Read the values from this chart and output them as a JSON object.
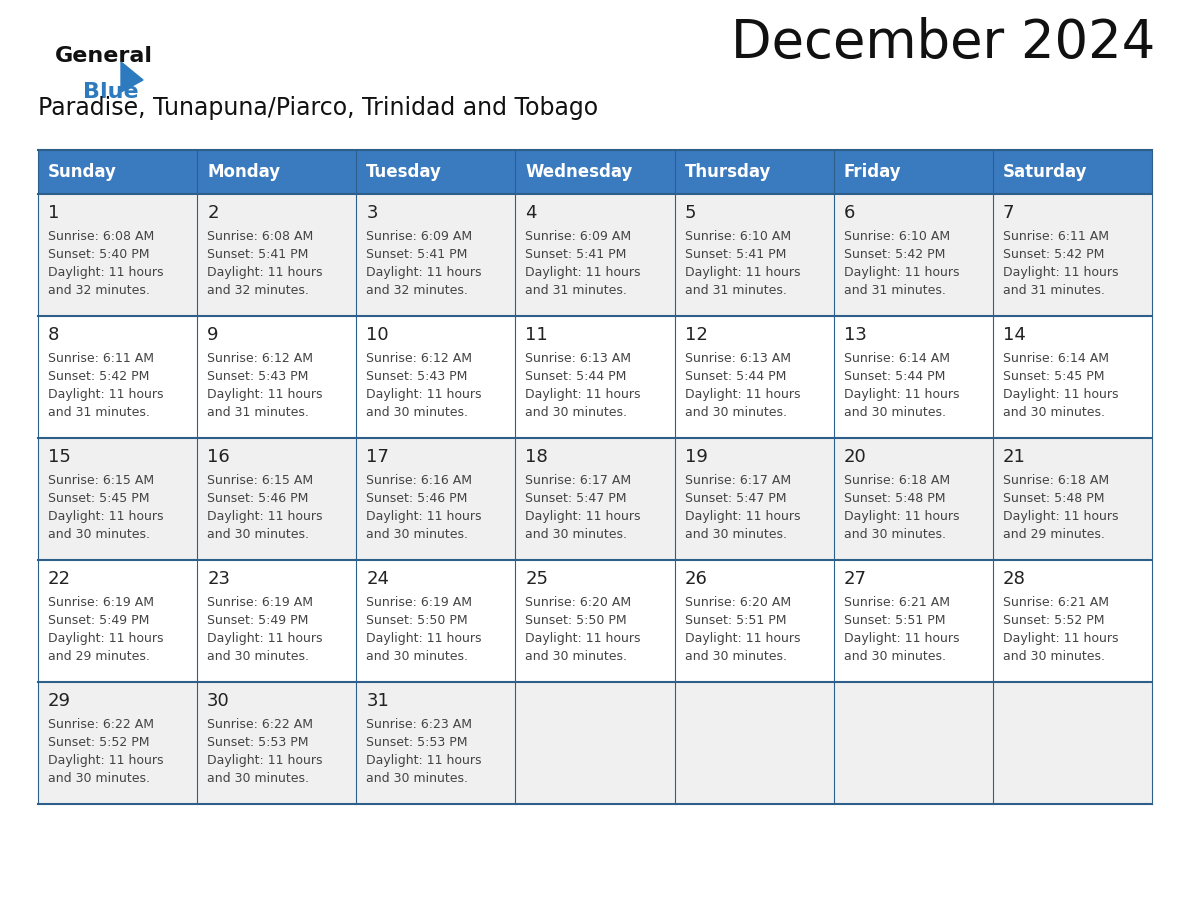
{
  "title": "December 2024",
  "subtitle": "Paradise, Tunapuna/Piarco, Trinidad and Tobago",
  "days_of_week": [
    "Sunday",
    "Monday",
    "Tuesday",
    "Wednesday",
    "Thursday",
    "Friday",
    "Saturday"
  ],
  "header_bg": "#3a7abf",
  "header_text": "#ffffff",
  "row_bg_odd": "#f0f0f0",
  "row_bg_even": "#ffffff",
  "grid_line_color": "#2e5f8a",
  "text_color": "#444444",
  "date_color": "#222222",
  "logo_general_color": "#111111",
  "logo_blue_color": "#2e7abf",
  "title_color": "#111111",
  "subtitle_color": "#111111",
  "calendar_data": [
    [
      {
        "day": 1,
        "sunrise": "6:08 AM",
        "sunset": "5:40 PM",
        "daylight": "11 hours and 32 minutes."
      },
      {
        "day": 2,
        "sunrise": "6:08 AM",
        "sunset": "5:41 PM",
        "daylight": "11 hours and 32 minutes."
      },
      {
        "day": 3,
        "sunrise": "6:09 AM",
        "sunset": "5:41 PM",
        "daylight": "11 hours and 32 minutes."
      },
      {
        "day": 4,
        "sunrise": "6:09 AM",
        "sunset": "5:41 PM",
        "daylight": "11 hours and 31 minutes."
      },
      {
        "day": 5,
        "sunrise": "6:10 AM",
        "sunset": "5:41 PM",
        "daylight": "11 hours and 31 minutes."
      },
      {
        "day": 6,
        "sunrise": "6:10 AM",
        "sunset": "5:42 PM",
        "daylight": "11 hours and 31 minutes."
      },
      {
        "day": 7,
        "sunrise": "6:11 AM",
        "sunset": "5:42 PM",
        "daylight": "11 hours and 31 minutes."
      }
    ],
    [
      {
        "day": 8,
        "sunrise": "6:11 AM",
        "sunset": "5:42 PM",
        "daylight": "11 hours and 31 minutes."
      },
      {
        "day": 9,
        "sunrise": "6:12 AM",
        "sunset": "5:43 PM",
        "daylight": "11 hours and 31 minutes."
      },
      {
        "day": 10,
        "sunrise": "6:12 AM",
        "sunset": "5:43 PM",
        "daylight": "11 hours and 30 minutes."
      },
      {
        "day": 11,
        "sunrise": "6:13 AM",
        "sunset": "5:44 PM",
        "daylight": "11 hours and 30 minutes."
      },
      {
        "day": 12,
        "sunrise": "6:13 AM",
        "sunset": "5:44 PM",
        "daylight": "11 hours and 30 minutes."
      },
      {
        "day": 13,
        "sunrise": "6:14 AM",
        "sunset": "5:44 PM",
        "daylight": "11 hours and 30 minutes."
      },
      {
        "day": 14,
        "sunrise": "6:14 AM",
        "sunset": "5:45 PM",
        "daylight": "11 hours and 30 minutes."
      }
    ],
    [
      {
        "day": 15,
        "sunrise": "6:15 AM",
        "sunset": "5:45 PM",
        "daylight": "11 hours and 30 minutes."
      },
      {
        "day": 16,
        "sunrise": "6:15 AM",
        "sunset": "5:46 PM",
        "daylight": "11 hours and 30 minutes."
      },
      {
        "day": 17,
        "sunrise": "6:16 AM",
        "sunset": "5:46 PM",
        "daylight": "11 hours and 30 minutes."
      },
      {
        "day": 18,
        "sunrise": "6:17 AM",
        "sunset": "5:47 PM",
        "daylight": "11 hours and 30 minutes."
      },
      {
        "day": 19,
        "sunrise": "6:17 AM",
        "sunset": "5:47 PM",
        "daylight": "11 hours and 30 minutes."
      },
      {
        "day": 20,
        "sunrise": "6:18 AM",
        "sunset": "5:48 PM",
        "daylight": "11 hours and 30 minutes."
      },
      {
        "day": 21,
        "sunrise": "6:18 AM",
        "sunset": "5:48 PM",
        "daylight": "11 hours and 29 minutes."
      }
    ],
    [
      {
        "day": 22,
        "sunrise": "6:19 AM",
        "sunset": "5:49 PM",
        "daylight": "11 hours and 29 minutes."
      },
      {
        "day": 23,
        "sunrise": "6:19 AM",
        "sunset": "5:49 PM",
        "daylight": "11 hours and 30 minutes."
      },
      {
        "day": 24,
        "sunrise": "6:19 AM",
        "sunset": "5:50 PM",
        "daylight": "11 hours and 30 minutes."
      },
      {
        "day": 25,
        "sunrise": "6:20 AM",
        "sunset": "5:50 PM",
        "daylight": "11 hours and 30 minutes."
      },
      {
        "day": 26,
        "sunrise": "6:20 AM",
        "sunset": "5:51 PM",
        "daylight": "11 hours and 30 minutes."
      },
      {
        "day": 27,
        "sunrise": "6:21 AM",
        "sunset": "5:51 PM",
        "daylight": "11 hours and 30 minutes."
      },
      {
        "day": 28,
        "sunrise": "6:21 AM",
        "sunset": "5:52 PM",
        "daylight": "11 hours and 30 minutes."
      }
    ],
    [
      {
        "day": 29,
        "sunrise": "6:22 AM",
        "sunset": "5:52 PM",
        "daylight": "11 hours and 30 minutes."
      },
      {
        "day": 30,
        "sunrise": "6:22 AM",
        "sunset": "5:53 PM",
        "daylight": "11 hours and 30 minutes."
      },
      {
        "day": 31,
        "sunrise": "6:23 AM",
        "sunset": "5:53 PM",
        "daylight": "11 hours and 30 minutes."
      },
      null,
      null,
      null,
      null
    ]
  ]
}
